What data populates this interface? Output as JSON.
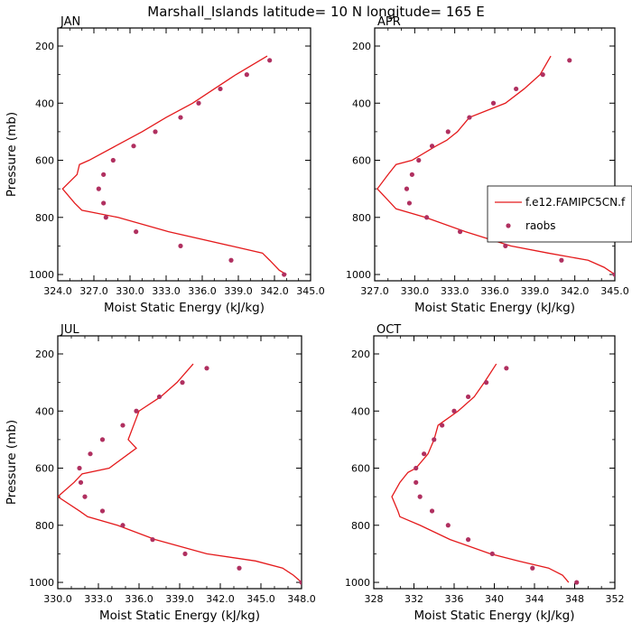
{
  "title": "Marshall_Islands  latitude= 10 N longitude= 165 E",
  "colors": {
    "model": "#e41a1c",
    "obs": "#b03060",
    "axis": "#000000"
  },
  "legend": {
    "model_label": "f.e12.FAMIPC5CN.f",
    "obs_label": "raobs"
  },
  "chart_data": [
    {
      "type": "line",
      "panel_label": "JAN",
      "xlabel": "Moist Static Energy (kJ/kg)",
      "ylabel": "Pressure (mb)",
      "xlim": [
        324.0,
        345.0
      ],
      "xticks": [
        "324.0",
        "327.0",
        "330.0",
        "333.0",
        "336.0",
        "339.0",
        "342.0",
        "345.0"
      ],
      "ylim": [
        1030,
        200
      ],
      "yticks": [
        "200",
        "400",
        "600",
        "800",
        "1000"
      ],
      "series": [
        {
          "name": "f.e12.FAMIPC5CN.f",
          "style": "line",
          "points": [
            [
              343.0,
              1000
            ],
            [
              342.4,
              985
            ],
            [
              341.6,
              950
            ],
            [
              341.0,
              925
            ],
            [
              338.4,
              900
            ],
            [
              333.2,
              850
            ],
            [
              329.0,
              800
            ],
            [
              326.0,
              775
            ],
            [
              325.4,
              750
            ],
            [
              324.4,
              700
            ],
            [
              325.6,
              650
            ],
            [
              325.8,
              615
            ],
            [
              326.6,
              600
            ],
            [
              328.8,
              550
            ],
            [
              331.0,
              500
            ],
            [
              333.0,
              450
            ],
            [
              335.2,
              400
            ],
            [
              337.0,
              350
            ],
            [
              338.8,
              300
            ],
            [
              341.4,
              235
            ]
          ]
        },
        {
          "name": "raobs",
          "style": "markers",
          "points": [
            [
              342.8,
              1000
            ],
            [
              338.4,
              950
            ],
            [
              334.2,
              900
            ],
            [
              330.5,
              850
            ],
            [
              328.0,
              800
            ],
            [
              327.8,
              750
            ],
            [
              327.4,
              700
            ],
            [
              327.8,
              650
            ],
            [
              328.6,
              600
            ],
            [
              330.3,
              550
            ],
            [
              332.1,
              500
            ],
            [
              334.2,
              450
            ],
            [
              335.7,
              400
            ],
            [
              337.5,
              350
            ],
            [
              339.7,
              300
            ],
            [
              341.6,
              250
            ]
          ]
        }
      ]
    },
    {
      "type": "line",
      "panel_label": "APR",
      "xlabel": "Moist Static Energy (kJ/kg)",
      "ylabel": "",
      "xlim": [
        327.0,
        345.0
      ],
      "xticks": [
        "327.0",
        "330.0",
        "333.0",
        "336.0",
        "339.0",
        "342.0",
        "345.0"
      ],
      "ylim": [
        1030,
        200
      ],
      "yticks": [
        "200",
        "400",
        "600",
        "800",
        "1000"
      ],
      "series": [
        {
          "name": "f.e12.FAMIPC5CN.f",
          "style": "line",
          "points": [
            [
              345.0,
              1000
            ],
            [
              344.2,
              975
            ],
            [
              343.0,
              950
            ],
            [
              340.0,
              925
            ],
            [
              337.2,
              900
            ],
            [
              333.8,
              850
            ],
            [
              330.8,
              800
            ],
            [
              328.6,
              770
            ],
            [
              328.2,
              750
            ],
            [
              327.2,
              700
            ],
            [
              328.0,
              650
            ],
            [
              328.6,
              615
            ],
            [
              329.8,
              600
            ],
            [
              331.6,
              550
            ],
            [
              332.4,
              530
            ],
            [
              333.2,
              500
            ],
            [
              334.1,
              450
            ],
            [
              336.8,
              400
            ],
            [
              338.2,
              350
            ],
            [
              339.4,
              300
            ],
            [
              340.2,
              235
            ]
          ]
        },
        {
          "name": "raobs",
          "style": "markers",
          "points": [
            [
              345.0,
              1000
            ],
            [
              341.0,
              950
            ],
            [
              336.8,
              900
            ],
            [
              333.4,
              850
            ],
            [
              330.9,
              800
            ],
            [
              329.6,
              750
            ],
            [
              329.4,
              700
            ],
            [
              329.8,
              650
            ],
            [
              330.3,
              600
            ],
            [
              331.3,
              550
            ],
            [
              332.5,
              500
            ],
            [
              334.1,
              450
            ],
            [
              335.9,
              400
            ],
            [
              337.6,
              350
            ],
            [
              339.6,
              300
            ],
            [
              341.6,
              250
            ]
          ]
        }
      ]
    },
    {
      "type": "line",
      "panel_label": "JUL",
      "xlabel": "Moist Static Energy (kJ/kg)",
      "ylabel": "Pressure (mb)",
      "xlim": [
        330.0,
        348.0
      ],
      "xticks": [
        "330.0",
        "333.0",
        "336.0",
        "339.0",
        "342.0",
        "345.0",
        "348.0"
      ],
      "ylim": [
        1030,
        200
      ],
      "yticks": [
        "200",
        "400",
        "600",
        "800",
        "1000"
      ],
      "series": [
        {
          "name": "f.e12.FAMIPC5CN.f",
          "style": "line",
          "points": [
            [
              348.0,
              1000
            ],
            [
              347.4,
              975
            ],
            [
              346.6,
              950
            ],
            [
              344.6,
              925
            ],
            [
              341.0,
              900
            ],
            [
              337.2,
              850
            ],
            [
              334.4,
              800
            ],
            [
              332.2,
              770
            ],
            [
              331.6,
              750
            ],
            [
              330.0,
              700
            ],
            [
              331.2,
              650
            ],
            [
              331.8,
              620
            ],
            [
              333.8,
              600
            ],
            [
              335.8,
              530
            ],
            [
              335.2,
              500
            ],
            [
              335.6,
              450
            ],
            [
              336.0,
              400
            ],
            [
              337.6,
              350
            ],
            [
              338.8,
              300
            ],
            [
              340.0,
              235
            ]
          ]
        },
        {
          "name": "raobs",
          "style": "markers",
          "points": [
            [
              348.0,
              1000
            ],
            [
              343.4,
              950
            ],
            [
              339.4,
              900
            ],
            [
              337.0,
              850
            ],
            [
              334.8,
              800
            ],
            [
              333.3,
              750
            ],
            [
              332.0,
              700
            ],
            [
              331.7,
              650
            ],
            [
              331.6,
              600
            ],
            [
              332.4,
              550
            ],
            [
              333.3,
              500
            ],
            [
              334.8,
              450
            ],
            [
              335.8,
              400
            ],
            [
              337.5,
              350
            ],
            [
              339.2,
              300
            ],
            [
              341.0,
              250
            ]
          ]
        }
      ]
    },
    {
      "type": "line",
      "panel_label": "OCT",
      "xlabel": "Moist Static Energy (kJ/kg)",
      "ylabel": "",
      "xlim": [
        328,
        352
      ],
      "xticks": [
        "328",
        "332",
        "336",
        "340",
        "344",
        "348",
        "352"
      ],
      "ylim": [
        1030,
        200
      ],
      "yticks": [
        "200",
        "400",
        "600",
        "800",
        "1000"
      ],
      "series": [
        {
          "name": "f.e12.FAMIPC5CN.f",
          "style": "line",
          "points": [
            [
              347.4,
              1000
            ],
            [
              346.8,
              975
            ],
            [
              345.4,
              950
            ],
            [
              342.4,
              925
            ],
            [
              339.6,
              900
            ],
            [
              335.6,
              850
            ],
            [
              332.6,
              800
            ],
            [
              330.6,
              770
            ],
            [
              330.4,
              750
            ],
            [
              329.8,
              700
            ],
            [
              330.6,
              650
            ],
            [
              331.4,
              615
            ],
            [
              332.2,
              600
            ],
            [
              333.4,
              550
            ],
            [
              334.0,
              500
            ],
            [
              334.4,
              450
            ],
            [
              336.4,
              400
            ],
            [
              338.0,
              350
            ],
            [
              339.0,
              300
            ],
            [
              340.2,
              235
            ]
          ]
        },
        {
          "name": "raobs",
          "style": "markers",
          "points": [
            [
              348.2,
              1000
            ],
            [
              343.8,
              950
            ],
            [
              339.8,
              900
            ],
            [
              337.4,
              850
            ],
            [
              335.4,
              800
            ],
            [
              333.8,
              750
            ],
            [
              332.6,
              700
            ],
            [
              332.2,
              650
            ],
            [
              332.2,
              600
            ],
            [
              333.0,
              550
            ],
            [
              334.0,
              500
            ],
            [
              334.8,
              450
            ],
            [
              336.0,
              400
            ],
            [
              337.4,
              350
            ],
            [
              339.2,
              300
            ],
            [
              341.2,
              250
            ]
          ]
        }
      ]
    }
  ]
}
